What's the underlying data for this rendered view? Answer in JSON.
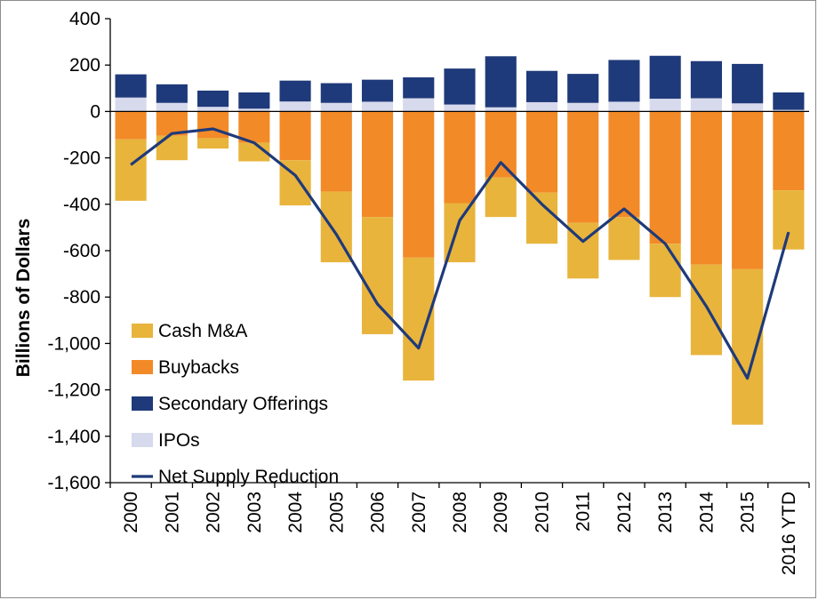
{
  "chart_data": {
    "type": "bar",
    "stacked": true,
    "title": "",
    "xlabel": "",
    "ylabel": "Billions of Dollars",
    "ylim": [
      -1600,
      400
    ],
    "yticks": [
      400,
      200,
      0,
      -200,
      -400,
      -600,
      -800,
      -1000,
      -1200,
      -1400,
      -1600
    ],
    "ytick_labels": [
      "400",
      "200",
      "0",
      "-200",
      "-400",
      "-600",
      "-800",
      "-1,000",
      "-1,200",
      "-1,400",
      "-1,600"
    ],
    "categories": [
      "2000",
      "2001",
      "2002",
      "2003",
      "2004",
      "2005",
      "2006",
      "2007",
      "2008",
      "2009",
      "2010",
      "2011",
      "2012",
      "2013",
      "2014",
      "2015",
      "2016 YTD"
    ],
    "series": [
      {
        "name": "Cash M&A",
        "color": "#E8B43C",
        "values": [
          -265,
          -105,
          -45,
          -80,
          -195,
          -305,
          -505,
          -530,
          -255,
          -170,
          -220,
          -240,
          -185,
          -230,
          -390,
          -670,
          -255
        ]
      },
      {
        "name": "Buybacks",
        "color": "#F28A28",
        "values": [
          -120,
          -105,
          -115,
          -135,
          -210,
          -345,
          -455,
          -630,
          -395,
          -285,
          -350,
          -480,
          -455,
          -570,
          -660,
          -680,
          -340
        ]
      },
      {
        "name": "Secondary Offerings",
        "color": "#1F3A7A",
        "values": [
          100,
          80,
          70,
          70,
          90,
          85,
          95,
          90,
          155,
          220,
          135,
          125,
          180,
          185,
          160,
          170,
          75
        ]
      },
      {
        "name": "IPOs",
        "color": "#D7D9EC",
        "values": [
          60,
          37,
          20,
          12,
          43,
          37,
          42,
          57,
          30,
          18,
          40,
          37,
          42,
          55,
          57,
          35,
          7
        ]
      },
      {
        "name": "Net Supply Reduction",
        "type": "line",
        "color": "#1F3A7A",
        "values": [
          -230,
          -95,
          -75,
          -135,
          -275,
          -530,
          -830,
          -1020,
          -470,
          -220,
          -400,
          -560,
          -420,
          -570,
          -840,
          -1150,
          -520
        ]
      }
    ],
    "legend_position": "inside-left",
    "grid": false
  }
}
